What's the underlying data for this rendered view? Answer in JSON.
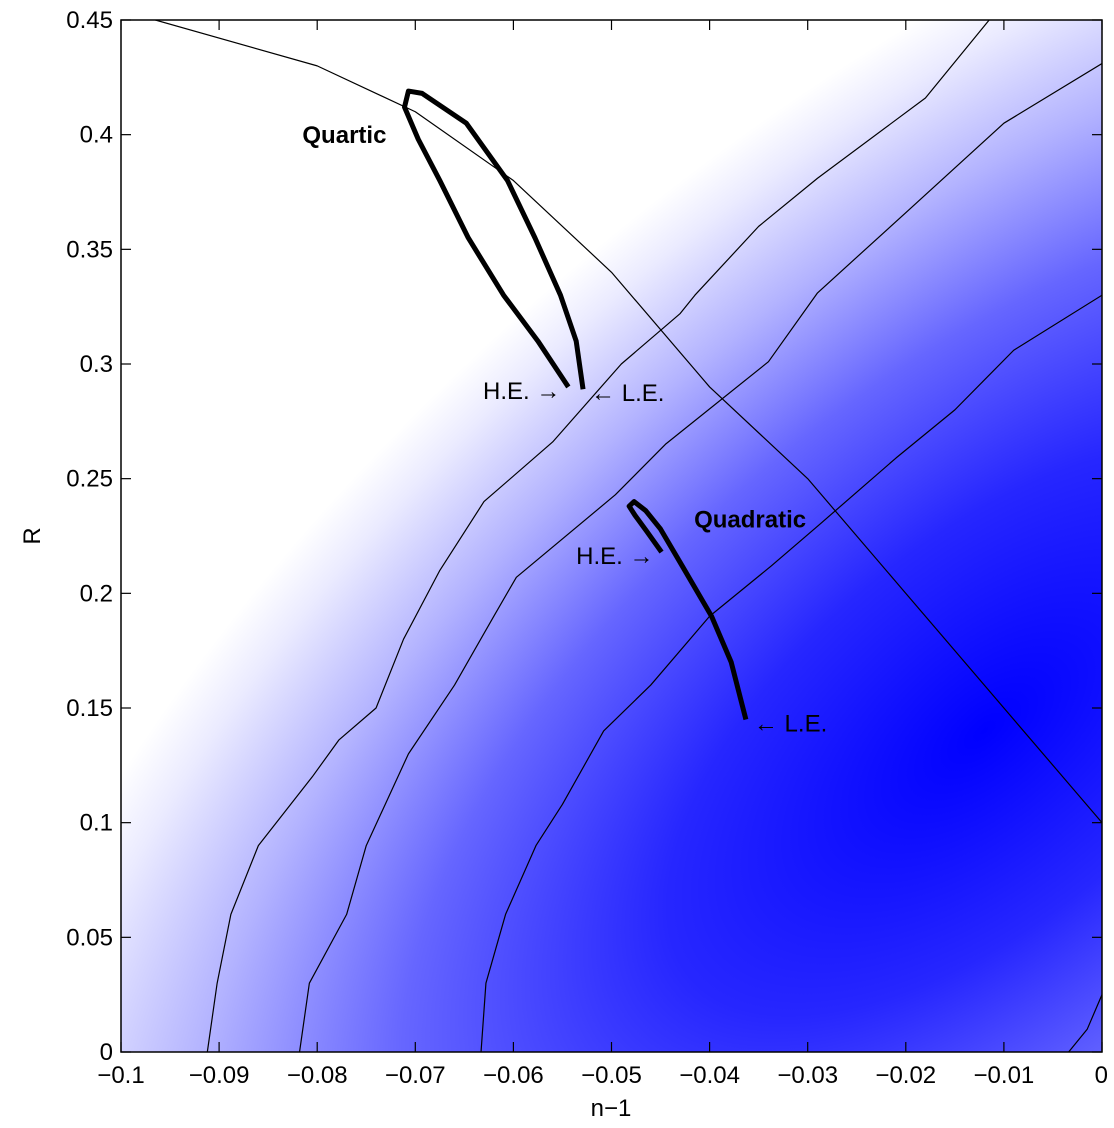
{
  "chart_data": {
    "type": "contour",
    "xlabel": "n−1",
    "ylabel": "R",
    "xlim": [
      -0.1,
      0
    ],
    "ylim": [
      0,
      0.45
    ],
    "x_ticks": [
      -0.1,
      -0.09,
      -0.08,
      -0.07,
      -0.06,
      -0.05,
      -0.04,
      -0.03,
      -0.02,
      -0.01,
      0
    ],
    "x_tick_labels": [
      "−0.1",
      "−0.09",
      "−0.08",
      "−0.07",
      "−0.06",
      "−0.05",
      "−0.04",
      "−0.03",
      "−0.02",
      "−0.01",
      "0"
    ],
    "y_ticks": [
      0,
      0.05,
      0.1,
      0.15,
      0.2,
      0.25,
      0.3,
      0.35,
      0.4,
      0.45
    ],
    "y_tick_labels": [
      "0",
      "0.05",
      "0.1",
      "0.15",
      "0.2",
      "0.25",
      "0.3",
      "0.35",
      "0.4",
      "0.45"
    ],
    "grid": false,
    "fill_color": "#0000ff",
    "likelihood_peak": {
      "x": -0.012,
      "y": 0.14
    },
    "contours": [
      {
        "level": 1,
        "points": [
          [
            -0.0965,
            0.45
          ],
          [
            -0.08,
            0.43
          ],
          [
            -0.07,
            0.41
          ],
          [
            -0.06,
            0.38
          ],
          [
            -0.05,
            0.34
          ],
          [
            -0.04,
            0.29
          ],
          [
            -0.03,
            0.25
          ],
          [
            -0.02,
            0.2
          ],
          [
            -0.01,
            0.15
          ],
          [
            0,
            0.1
          ]
        ]
      },
      {
        "level": 2,
        "points": [
          [
            -0.0912,
            0.0
          ],
          [
            -0.0902,
            0.03
          ],
          [
            -0.0888,
            0.06
          ],
          [
            -0.086,
            0.09
          ],
          [
            -0.0805,
            0.12
          ],
          [
            -0.0778,
            0.136
          ],
          [
            -0.074,
            0.15
          ],
          [
            -0.0712,
            0.18
          ],
          [
            -0.0675,
            0.21
          ],
          [
            -0.063,
            0.24
          ],
          [
            -0.056,
            0.266
          ],
          [
            -0.049,
            0.3
          ],
          [
            -0.043,
            0.322
          ],
          [
            -0.0415,
            0.33
          ],
          [
            -0.035,
            0.36
          ],
          [
            -0.029,
            0.381
          ],
          [
            -0.018,
            0.416
          ],
          [
            -0.0115,
            0.45
          ]
        ]
      },
      {
        "level": 3,
        "points": [
          [
            -0.0818,
            0.0
          ],
          [
            -0.0808,
            0.03
          ],
          [
            -0.077,
            0.06
          ],
          [
            -0.075,
            0.09
          ],
          [
            -0.0707,
            0.13
          ],
          [
            -0.066,
            0.16
          ],
          [
            -0.062,
            0.19
          ],
          [
            -0.0597,
            0.207
          ],
          [
            -0.0496,
            0.243
          ],
          [
            -0.0445,
            0.265
          ],
          [
            -0.034,
            0.301
          ],
          [
            -0.029,
            0.331
          ],
          [
            -0.02,
            0.366
          ],
          [
            -0.01,
            0.405
          ],
          [
            0,
            0.431
          ]
        ]
      },
      {
        "level": 4,
        "points": [
          [
            -0.0633,
            0.0
          ],
          [
            -0.0628,
            0.03
          ],
          [
            -0.0608,
            0.06
          ],
          [
            -0.0577,
            0.09
          ],
          [
            -0.055,
            0.108
          ],
          [
            -0.0508,
            0.14
          ],
          [
            -0.046,
            0.16
          ],
          [
            -0.04,
            0.19
          ],
          [
            -0.0337,
            0.212
          ],
          [
            -0.0288,
            0.23
          ],
          [
            -0.021,
            0.259
          ],
          [
            -0.015,
            0.28
          ],
          [
            -0.009,
            0.306
          ],
          [
            0,
            0.33
          ]
        ]
      },
      {
        "level": 5,
        "points": [
          [
            -0.0034,
            0.0
          ],
          [
            -0.0015,
            0.01
          ],
          [
            0,
            0.025
          ]
        ]
      }
    ],
    "trajectories": [
      {
        "name": "Quartic",
        "points": [
          [
            -0.0529,
            0.289
          ],
          [
            -0.0536,
            0.31
          ],
          [
            -0.0552,
            0.33
          ],
          [
            -0.0578,
            0.355
          ],
          [
            -0.0606,
            0.38
          ],
          [
            -0.0648,
            0.405
          ],
          [
            -0.0693,
            0.418
          ],
          [
            -0.0707,
            0.419
          ],
          [
            -0.0711,
            0.412
          ],
          [
            -0.0697,
            0.398
          ],
          [
            -0.0675,
            0.38
          ],
          [
            -0.0646,
            0.355
          ],
          [
            -0.061,
            0.33
          ],
          [
            -0.0575,
            0.31
          ],
          [
            -0.0544,
            0.29
          ]
        ],
        "annotations": [
          {
            "label": "H.E. →",
            "x": -0.0544,
            "y": 0.29
          },
          {
            "label": "← L.E.",
            "x": -0.0529,
            "y": 0.289
          }
        ]
      },
      {
        "name": "Quadratic",
        "points": [
          [
            -0.0449,
            0.218
          ],
          [
            -0.0464,
            0.227
          ],
          [
            -0.0476,
            0.234
          ],
          [
            -0.0482,
            0.238
          ],
          [
            -0.0477,
            0.24
          ],
          [
            -0.0465,
            0.236
          ],
          [
            -0.045,
            0.228
          ],
          [
            -0.0428,
            0.212
          ],
          [
            -0.0398,
            0.19
          ],
          [
            -0.0378,
            0.17
          ],
          [
            -0.0363,
            0.145
          ]
        ],
        "annotations": [
          {
            "label": "H.E. →",
            "x": -0.0449,
            "y": 0.218
          },
          {
            "label": "← L.E.",
            "x": -0.0363,
            "y": 0.145
          }
        ]
      }
    ]
  }
}
